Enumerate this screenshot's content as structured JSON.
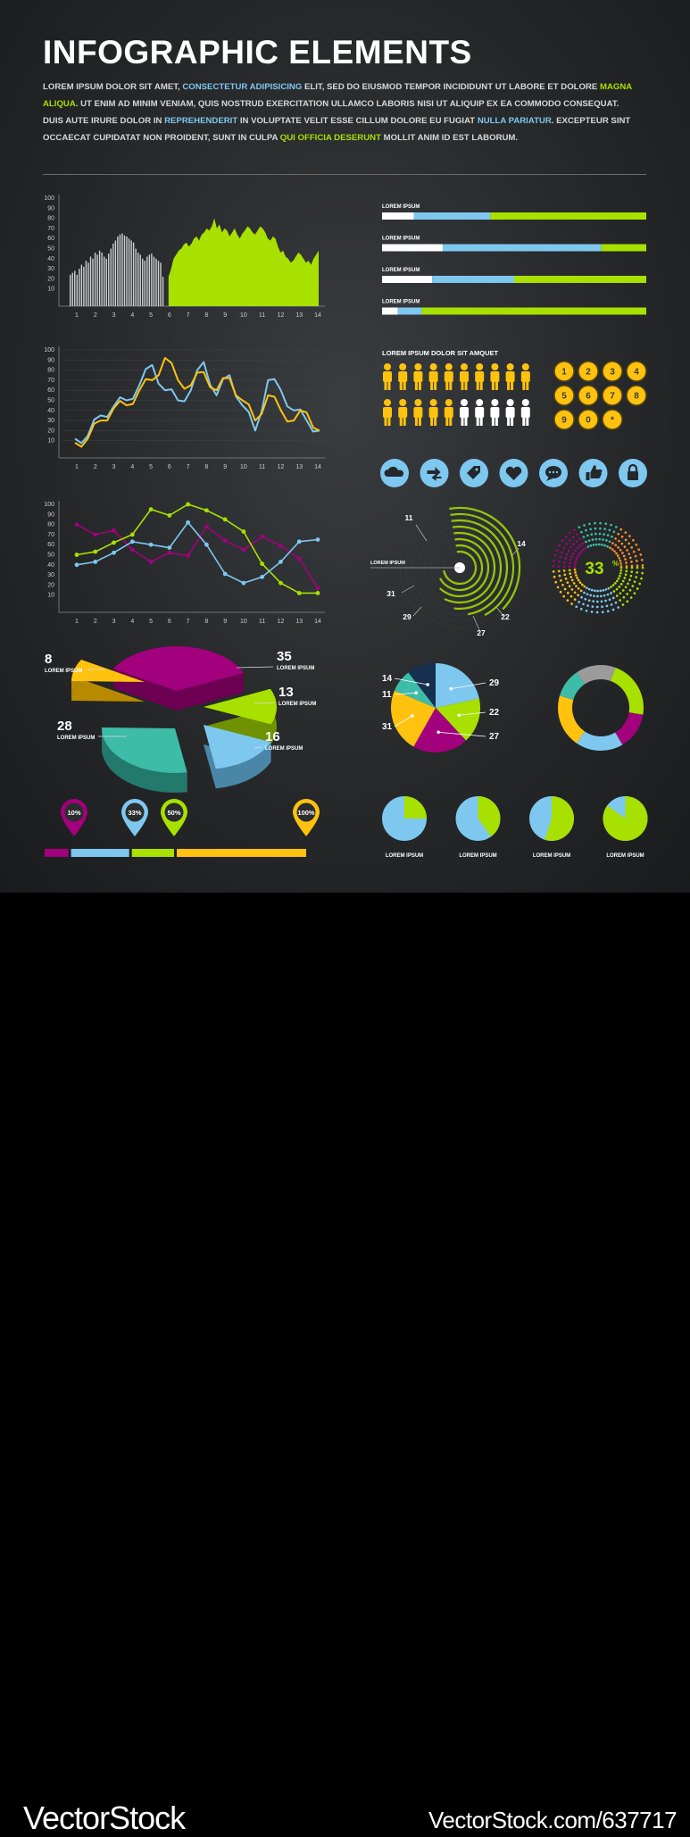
{
  "header": {
    "title": "INFOGRAPHIC ELEMENTS",
    "intro": [
      {
        "t": "LOREM IPSUM DOLOR SIT AMET, ",
        "c": "w"
      },
      {
        "t": "CONSECTETUR ADIPISICING",
        "c": "b"
      },
      {
        "t": " ELIT, SED DO EIUSMOD TEMPOR INCIDIDUNT UT LABORE ET DOLORE ",
        "c": "w"
      },
      {
        "t": "MAGNA ALIQUA",
        "c": "g"
      },
      {
        "t": ". UT ENIM AD MINIM VENIAM, QUIS NOSTRUD EXERCITATION ULLAMCO LABORIS NISI UT ALIQUIP EX EA COMMODO CONSEQUAT. DUIS AUTE IRURE DOLOR IN ",
        "c": "w"
      },
      {
        "t": "REPREHENDERIT",
        "c": "b"
      },
      {
        "t": " IN VOLUPTATE VELIT ESSE CILLUM DOLORE EU FUGIAT ",
        "c": "w"
      },
      {
        "t": "NULLA PARIATUR",
        "c": "b"
      },
      {
        "t": ". EXCEPTEUR SINT OCCAECAT CUPIDATAT NON PROIDENT, SUNT IN CULPA ",
        "c": "w"
      },
      {
        "t": "QUI OFFICIA DESERUNT",
        "c": "g"
      },
      {
        "t": " MOLLIT ANIM ID EST LABORUM.",
        "c": "w"
      }
    ]
  },
  "colors": {
    "green": "#a8e000",
    "blue": "#7ec8f0",
    "yellow": "#ffc20e",
    "purple": "#a3007d",
    "teal": "#3dbca8",
    "navy": "#16304f",
    "gray": "#9b9b9b",
    "white": "#ffffff"
  },
  "chart_data": [
    {
      "type": "area",
      "title": "",
      "x_ticks": [
        "1",
        "2",
        "3",
        "4",
        "5",
        "6",
        "7",
        "8",
        "9",
        "10",
        "11",
        "12",
        "13",
        "14"
      ],
      "y_ticks": [
        "100",
        "90",
        "80",
        "70",
        "60",
        "50",
        "40",
        "30",
        "20",
        "10"
      ],
      "ylim": [
        0,
        100
      ],
      "series": [
        {
          "name": "bars",
          "style": "gray-bars",
          "x_start": 1,
          "values": [
            24,
            26,
            28,
            24,
            30,
            34,
            32,
            38,
            36,
            42,
            40,
            46,
            44,
            48,
            46,
            42,
            40,
            45,
            50,
            55,
            58,
            62,
            64,
            65,
            63,
            62,
            60,
            58,
            56,
            50,
            46,
            44,
            40,
            38,
            42,
            44,
            45,
            42,
            40,
            38,
            36,
            22
          ]
        },
        {
          "name": "area",
          "style": "green-area",
          "x_start": 6,
          "values": [
            22,
            30,
            40,
            44,
            48,
            50,
            54,
            56,
            52,
            55,
            60,
            62,
            58,
            64,
            66,
            70,
            68,
            72,
            80,
            70,
            74,
            66,
            70,
            68,
            62,
            66,
            70,
            64,
            60,
            65,
            68,
            72,
            70,
            66,
            64,
            68,
            72,
            70,
            66,
            60,
            58,
            62,
            60,
            52,
            46,
            48,
            42,
            40,
            36,
            38,
            42,
            46,
            44,
            40,
            36,
            38,
            34,
            40,
            44,
            48
          ]
        }
      ]
    },
    {
      "type": "line",
      "x_ticks": [
        "1",
        "2",
        "3",
        "4",
        "5",
        "6",
        "7",
        "8",
        "9",
        "10",
        "11",
        "12",
        "13",
        "14"
      ],
      "y_ticks": [
        "100",
        "90",
        "80",
        "70",
        "60",
        "50",
        "40",
        "30",
        "20",
        "10"
      ],
      "ylim": [
        0,
        100
      ],
      "series": [
        {
          "name": "blue",
          "values": [
            12,
            15,
            35,
            44,
            50,
            65,
            85,
            60,
            50,
            60,
            88,
            55,
            75,
            45,
            20,
            70,
            60,
            40,
            30,
            20
          ]
        },
        {
          "name": "yellow",
          "values": [
            8,
            12,
            30,
            42,
            45,
            60,
            70,
            92,
            70,
            65,
            78,
            60,
            72,
            50,
            30,
            55,
            40,
            30,
            38,
            20
          ]
        }
      ]
    },
    {
      "type": "line",
      "x": [
        1,
        2,
        3,
        4,
        5,
        6,
        7,
        8,
        9,
        10,
        11,
        12,
        13,
        14
      ],
      "x_ticks": [
        "1",
        "2",
        "3",
        "4",
        "5",
        "6",
        "7",
        "8",
        "9",
        "10",
        "11",
        "12",
        "13",
        "14"
      ],
      "y_ticks": [
        "100",
        "90",
        "80",
        "70",
        "60",
        "50",
        "40",
        "30",
        "20",
        "10"
      ],
      "ylim": [
        0,
        100
      ],
      "series": [
        {
          "name": "purple",
          "values": [
            80,
            70,
            74,
            55,
            43,
            52,
            49,
            78,
            64,
            55,
            68,
            59,
            46,
            17
          ]
        },
        {
          "name": "green",
          "values": [
            50,
            53,
            62,
            70,
            95,
            89,
            100,
            94,
            85,
            73,
            41,
            22,
            12,
            12
          ]
        },
        {
          "name": "blue",
          "values": [
            40,
            43,
            52,
            63,
            60,
            57,
            82,
            60,
            31,
            22,
            28,
            43,
            63,
            65
          ]
        }
      ]
    },
    {
      "type": "bar",
      "style": "progress",
      "items": [
        {
          "label": "LOREM IPSUM",
          "values": [
            12,
            29,
            59
          ]
        },
        {
          "label": "LOREM IPSUM",
          "values": [
            23,
            60,
            17
          ]
        },
        {
          "label": "LOREM IPSUM",
          "values": [
            19,
            31,
            50
          ]
        },
        {
          "label": "LOREM IPSUM",
          "values": [
            6,
            9,
            85
          ]
        }
      ]
    },
    {
      "type": "pie",
      "style": "3d",
      "slices": [
        {
          "value": 35,
          "label": "LOREM IPSUM",
          "color": "purple"
        },
        {
          "value": 13,
          "label": "LOREM IPSUM",
          "color": "green"
        },
        {
          "value": 16,
          "label": "LOREM IPSUM",
          "color": "blue"
        },
        {
          "value": 28,
          "label": "LOREM IPSUM",
          "color": "teal"
        },
        {
          "value": 8,
          "label": "LOREM IPSUM",
          "color": "yellow"
        }
      ]
    },
    {
      "type": "pie",
      "slices": [
        {
          "value": 29,
          "color": "blue"
        },
        {
          "value": 22,
          "color": "green"
        },
        {
          "value": 27,
          "color": "purple"
        },
        {
          "value": 31,
          "color": "yellow"
        },
        {
          "value": 11,
          "color": "teal"
        },
        {
          "value": 14,
          "color": "navy"
        }
      ]
    },
    {
      "type": "pie",
      "style": "donut",
      "slices": [
        {
          "value": 22,
          "color": "green"
        },
        {
          "value": 14,
          "color": "purple"
        },
        {
          "value": 18,
          "color": "blue"
        },
        {
          "value": 20,
          "color": "yellow"
        },
        {
          "value": 11,
          "color": "teal"
        },
        {
          "value": 15,
          "color": "gray"
        }
      ]
    },
    {
      "type": "pie",
      "style": "small-multiples",
      "items": [
        {
          "label": "LOREM IPSUM",
          "percent": 25
        },
        {
          "label": "LOREM IPSUM",
          "percent": 40
        },
        {
          "label": "LOREM IPSUM",
          "percent": 55
        },
        {
          "label": "LOREM IPSUM",
          "percent": 85
        }
      ]
    },
    {
      "type": "radial",
      "center_label": "LOREM IPSUM",
      "numbers": [
        "11",
        "14",
        "31",
        "29",
        "22",
        "27"
      ]
    }
  ],
  "people": {
    "title": "LOREM IPSUM DOLOR SIT AMQUET",
    "yellow_count": 15,
    "total": 20
  },
  "keypad": [
    "1",
    "2",
    "3",
    "4",
    "5",
    "6",
    "7",
    "8",
    "9",
    "0",
    "*"
  ],
  "icons": [
    "cloud-icon",
    "arrows-icon",
    "tag-icon",
    "heart-icon",
    "chat-icon",
    "thumbs-up-icon",
    "lock-icon"
  ],
  "gauge": {
    "value": 33,
    "unit": "%"
  },
  "markers": {
    "pins": [
      {
        "label": "10%",
        "color": "purple"
      },
      {
        "label": "33%",
        "color": "blue"
      },
      {
        "label": "50%",
        "color": "green"
      },
      {
        "label": "100%",
        "color": "yellow"
      }
    ],
    "bar": [
      {
        "percent": 10,
        "color": "purple"
      },
      {
        "percent": 23,
        "color": "blue"
      },
      {
        "percent": 17,
        "color": "green"
      },
      {
        "percent": 50,
        "color": "yellow"
      }
    ]
  },
  "footer": {
    "brand": "VectorStock",
    "id": "VectorStock.com/637717"
  }
}
